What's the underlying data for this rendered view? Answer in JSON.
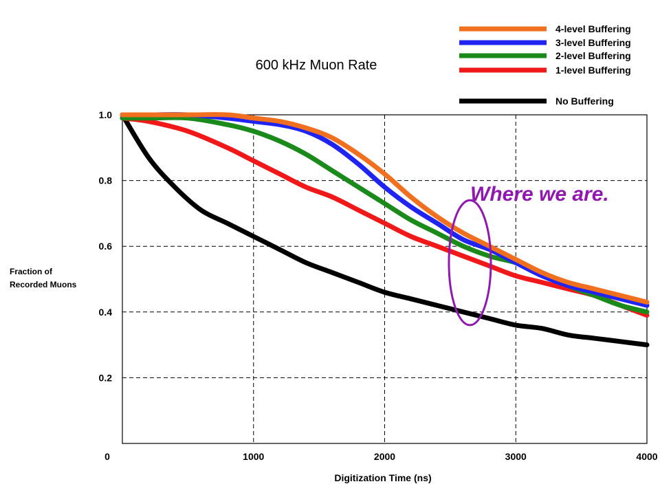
{
  "chart_data": {
    "type": "line",
    "title": "600 kHz Muon Rate",
    "xlabel": "Digitization Time (ns)",
    "ylabel_lines": [
      "Fraction of",
      "Recorded Muons"
    ],
    "xlim": [
      0,
      4000
    ],
    "ylim": [
      0,
      1.0
    ],
    "x_ticks": [
      1000,
      2000,
      3000,
      4000
    ],
    "x_tick_labels": [
      "1000",
      "2000",
      "3000",
      "4000"
    ],
    "y_ticks": [
      0.2,
      0.4,
      0.6,
      0.8,
      1.0
    ],
    "y_tick_labels": [
      "0.2",
      "0.4",
      "0.6",
      "0.8",
      "1.0"
    ],
    "origin_label": "0",
    "grid": true,
    "legend_position": "top-right",
    "series": [
      {
        "name": "4-level Buffering",
        "color": "#f07020",
        "x": [
          0,
          200,
          500,
          800,
          1000,
          1200,
          1400,
          1600,
          1800,
          2000,
          2200,
          2400,
          2600,
          2800,
          3000,
          3200,
          3400,
          3600,
          3800,
          4000
        ],
        "y": [
          1.0,
          1.0,
          1.0,
          1.0,
          0.99,
          0.98,
          0.96,
          0.93,
          0.88,
          0.82,
          0.75,
          0.69,
          0.64,
          0.6,
          0.56,
          0.52,
          0.49,
          0.47,
          0.45,
          0.43
        ]
      },
      {
        "name": "3-level Buffering",
        "color": "#1f24f0",
        "x": [
          0,
          200,
          500,
          800,
          1000,
          1200,
          1400,
          1600,
          1800,
          2000,
          2200,
          2400,
          2600,
          2800,
          3000,
          3200,
          3400,
          3600,
          3800,
          4000
        ],
        "y": [
          1.0,
          1.0,
          1.0,
          0.99,
          0.98,
          0.97,
          0.95,
          0.91,
          0.85,
          0.78,
          0.72,
          0.67,
          0.62,
          0.59,
          0.55,
          0.51,
          0.48,
          0.46,
          0.44,
          0.42
        ]
      },
      {
        "name": "2-level Buffering",
        "color": "#1a8a1a",
        "x": [
          0,
          200,
          500,
          800,
          1000,
          1200,
          1400,
          1600,
          1800,
          2000,
          2200,
          2400,
          2600,
          2800,
          3000,
          3200,
          3400,
          3600,
          3800,
          4000
        ],
        "y": [
          0.99,
          0.99,
          0.99,
          0.97,
          0.95,
          0.92,
          0.88,
          0.83,
          0.78,
          0.73,
          0.68,
          0.64,
          0.6,
          0.57,
          0.55,
          0.52,
          0.48,
          0.45,
          0.42,
          0.4
        ]
      },
      {
        "name": "1-level Buffering",
        "color": "#f01818",
        "x": [
          0,
          200,
          500,
          800,
          1000,
          1200,
          1400,
          1600,
          1800,
          2000,
          2200,
          2400,
          2600,
          2800,
          3000,
          3200,
          3400,
          3600,
          3800,
          4000
        ],
        "y": [
          0.99,
          0.98,
          0.95,
          0.9,
          0.86,
          0.82,
          0.78,
          0.75,
          0.71,
          0.67,
          0.63,
          0.6,
          0.57,
          0.54,
          0.51,
          0.49,
          0.47,
          0.45,
          0.42,
          0.39
        ]
      },
      {
        "name": "No Buffering",
        "color": "#000000",
        "x": [
          0,
          200,
          400,
          600,
          800,
          1000,
          1200,
          1400,
          1600,
          1800,
          2000,
          2200,
          2400,
          2600,
          2800,
          3000,
          3200,
          3400,
          3600,
          3800,
          4000
        ],
        "y": [
          1.0,
          0.87,
          0.78,
          0.71,
          0.67,
          0.63,
          0.59,
          0.55,
          0.52,
          0.49,
          0.46,
          0.44,
          0.42,
          0.4,
          0.38,
          0.36,
          0.35,
          0.33,
          0.32,
          0.31,
          0.3
        ]
      }
    ],
    "annotation": {
      "text": "Where we are.",
      "color": "#9018b0",
      "ellipse_center": [
        2650,
        0.55
      ],
      "ellipse_radius_x": 160,
      "ellipse_radius_y": 0.19
    }
  }
}
